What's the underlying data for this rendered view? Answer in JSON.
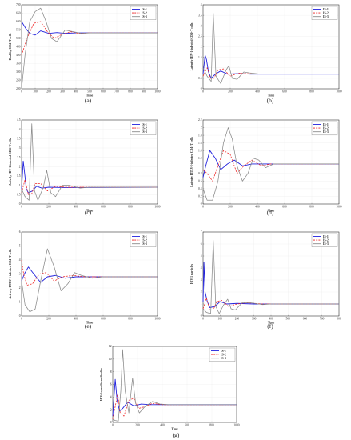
{
  "colors": {
    "IS-1": "#2222dd",
    "IS-2": "#ee2222",
    "IS-3": "#8a8a8a"
  },
  "chart_data": [
    {
      "id": "a",
      "type": "line",
      "panel_label": "(a)",
      "xlabel": "Time",
      "ylabel": "Healthy CD4+T cells",
      "xlim": [
        0,
        1000
      ],
      "ylim": [
        200,
        700
      ],
      "xticks": [
        0,
        100,
        200,
        300,
        400,
        500,
        600,
        700,
        800,
        900,
        1000
      ],
      "yticks": [
        200,
        250,
        300,
        350,
        400,
        450,
        500,
        550,
        600,
        650,
        700
      ],
      "grid": true,
      "legend": "top-right",
      "series": [
        {
          "name": "IS-1",
          "style": "solid",
          "x": [
            0,
            30,
            60,
            100,
            140,
            200,
            260,
            320,
            400,
            500,
            1000
          ],
          "y": [
            600,
            560,
            530,
            520,
            545,
            530,
            535,
            530,
            533,
            533,
            533
          ]
        },
        {
          "name": "IS-2",
          "style": "dashed",
          "x": [
            0,
            40,
            90,
            140,
            190,
            240,
            300,
            360,
            420,
            500,
            1000
          ],
          "y": [
            400,
            500,
            590,
            600,
            540,
            500,
            525,
            540,
            530,
            533,
            533
          ]
        },
        {
          "name": "IS-3",
          "style": "solid",
          "x": [
            0,
            25,
            60,
            100,
            140,
            180,
            220,
            260,
            320,
            380,
            440,
            500,
            1000
          ],
          "y": [
            200,
            400,
            600,
            660,
            680,
            600,
            500,
            480,
            550,
            540,
            530,
            533,
            533
          ]
        }
      ]
    },
    {
      "id": "b",
      "type": "line",
      "panel_label": "(b)",
      "xlabel": "Time",
      "ylabel": "Latently HIV-1-infected CD4+T cells",
      "xlim": [
        0,
        1000
      ],
      "ylim": [
        0,
        4
      ],
      "xticks": [
        0,
        200,
        400,
        600,
        800,
        1000
      ],
      "yticks": [
        0,
        0.5,
        1,
        1.5,
        2,
        2.5,
        3,
        3.5,
        4
      ],
      "grid": true,
      "legend": "top-right",
      "series": [
        {
          "name": "IS-1",
          "style": "solid",
          "x": [
            0,
            15,
            25,
            40,
            60,
            90,
            130,
            180,
            250,
            350,
            1000
          ],
          "y": [
            0.7,
            1.6,
            1.4,
            0.8,
            0.5,
            0.7,
            0.85,
            0.7,
            0.72,
            0.7,
            0.7
          ]
        },
        {
          "name": "IS-2",
          "style": "dashed",
          "x": [
            0,
            30,
            55,
            80,
            110,
            150,
            200,
            260,
            330,
            450,
            1000
          ],
          "y": [
            0.6,
            1.0,
            0.5,
            0.5,
            0.9,
            0.95,
            0.6,
            0.75,
            0.72,
            0.7,
            0.7
          ]
        },
        {
          "name": "IS-3",
          "style": "solid",
          "x": [
            0,
            30,
            60,
            75,
            95,
            130,
            170,
            190,
            215,
            250,
            300,
            350,
            420,
            500,
            1000
          ],
          "y": [
            1.0,
            0.6,
            0.35,
            3.6,
            0.6,
            0.25,
            0.9,
            1.1,
            0.5,
            0.45,
            0.8,
            0.75,
            0.7,
            0.7,
            0.7
          ]
        }
      ]
    },
    {
      "id": "c",
      "type": "line",
      "panel_label": "(c)",
      "xlabel": "Time",
      "ylabel": "Actively HIV-1-infected CD4+T cells",
      "xlim": [
        0,
        1000
      ],
      "ylim": [
        0,
        4.5
      ],
      "xticks": [
        0,
        200,
        400,
        600,
        800,
        1000
      ],
      "yticks": [
        0,
        0.5,
        1,
        1.5,
        2,
        2.5,
        3,
        3.5,
        4,
        4.5
      ],
      "grid": true,
      "legend": "top-right",
      "series": [
        {
          "name": "IS-1",
          "style": "solid",
          "x": [
            0,
            12,
            20,
            35,
            50,
            80,
            110,
            150,
            200,
            300,
            1000
          ],
          "y": [
            0.8,
            2.3,
            1.8,
            0.8,
            0.6,
            0.7,
            0.95,
            0.85,
            0.9,
            0.88,
            0.9
          ]
        },
        {
          "name": "IS-2",
          "style": "dashed",
          "x": [
            0,
            25,
            50,
            75,
            100,
            140,
            190,
            250,
            320,
            450,
            1000
          ],
          "y": [
            0.6,
            1.3,
            0.5,
            0.55,
            1.1,
            1.1,
            0.7,
            0.95,
            0.9,
            0.9,
            0.9
          ]
        },
        {
          "name": "IS-3",
          "style": "solid",
          "x": [
            0,
            25,
            55,
            75,
            95,
            120,
            160,
            185,
            215,
            250,
            300,
            350,
            430,
            500,
            1000
          ],
          "y": [
            0.8,
            0.4,
            0.2,
            4.3,
            0.7,
            0.2,
            0.9,
            1.8,
            0.6,
            0.4,
            1.0,
            1.0,
            0.85,
            0.9,
            0.9
          ]
        }
      ]
    },
    {
      "id": "d",
      "type": "line",
      "panel_label": "(d)",
      "xlabel": "Time",
      "ylabel": "Latently HTLV-I-infected CD4+T cells",
      "xlim": [
        0,
        1000
      ],
      "ylim": [
        0,
        2.2
      ],
      "xticks": [
        0,
        200,
        400,
        600,
        800,
        1000
      ],
      "yticks": [
        0,
        0.2,
        0.4,
        0.6,
        0.8,
        1,
        1.2,
        1.4,
        1.6,
        1.8,
        2,
        2.2
      ],
      "grid": true,
      "legend": "top-right",
      "series": [
        {
          "name": "IS-1",
          "style": "solid",
          "x": [
            0,
            20,
            50,
            90,
            130,
            180,
            230,
            290,
            360,
            450,
            1000
          ],
          "y": [
            0.7,
            1.0,
            1.4,
            1.2,
            0.9,
            1.05,
            1.15,
            1.0,
            1.05,
            1.05,
            1.05
          ]
        },
        {
          "name": "IS-2",
          "style": "dashed",
          "x": [
            0,
            30,
            70,
            110,
            150,
            200,
            250,
            300,
            360,
            430,
            500,
            1000
          ],
          "y": [
            0.9,
            0.8,
            0.6,
            1.0,
            1.4,
            1.3,
            0.8,
            1.0,
            1.15,
            1.0,
            1.05,
            1.05
          ]
        },
        {
          "name": "IS-3",
          "style": "solid",
          "x": [
            0,
            30,
            70,
            110,
            150,
            185,
            215,
            250,
            290,
            330,
            370,
            410,
            460,
            520,
            600,
            1000
          ],
          "y": [
            0.4,
            0.1,
            0.1,
            0.6,
            1.6,
            2.0,
            1.7,
            1.0,
            0.6,
            0.8,
            1.2,
            1.15,
            0.95,
            1.05,
            1.05,
            1.05
          ]
        }
      ]
    },
    {
      "id": "e",
      "type": "line",
      "panel_label": "(e)",
      "xlabel": "Time",
      "ylabel": "Actively HTLV-I-infected CD4+T cells",
      "xlim": [
        0,
        1000
      ],
      "ylim": [
        0,
        6
      ],
      "xticks": [
        0,
        200,
        400,
        600,
        800,
        1000
      ],
      "yticks": [
        0,
        1,
        2,
        3,
        4,
        5,
        6
      ],
      "grid": true,
      "legend": "top-right",
      "series": [
        {
          "name": "IS-1",
          "style": "solid",
          "x": [
            0,
            20,
            50,
            90,
            140,
            190,
            250,
            320,
            400,
            1000
          ],
          "y": [
            2.5,
            3.0,
            3.5,
            3.0,
            2.4,
            2.8,
            2.9,
            2.7,
            2.8,
            2.8
          ]
        },
        {
          "name": "IS-2",
          "style": "dashed",
          "x": [
            0,
            15,
            40,
            80,
            130,
            180,
            240,
            300,
            380,
            460,
            1000
          ],
          "y": [
            4.0,
            3.0,
            2.2,
            2.3,
            3.0,
            3.1,
            2.5,
            2.8,
            2.9,
            2.8,
            2.8
          ]
        },
        {
          "name": "IS-3",
          "style": "solid",
          "x": [
            0,
            25,
            60,
            100,
            140,
            190,
            240,
            290,
            340,
            390,
            440,
            520,
            600,
            1000
          ],
          "y": [
            2.5,
            0.8,
            0.3,
            0.5,
            2.5,
            4.8,
            3.5,
            1.8,
            2.3,
            3.1,
            2.9,
            2.7,
            2.8,
            2.8
          ]
        }
      ]
    },
    {
      "id": "f",
      "type": "line",
      "panel_label": "(f)",
      "xlabel": "Time",
      "ylabel": "HIV-1 particles",
      "xlim": [
        0,
        800
      ],
      "ylim": [
        0,
        7
      ],
      "xticks": [
        0,
        100,
        200,
        300,
        400,
        500,
        600,
        700,
        800
      ],
      "yticks": [
        0,
        1,
        2,
        3,
        4,
        5,
        6,
        7
      ],
      "grid": true,
      "legend": "top-right",
      "series": [
        {
          "name": "IS-1",
          "style": "solid",
          "x": [
            0,
            5,
            12,
            25,
            40,
            70,
            100,
            140,
            200,
            300,
            800
          ],
          "y": [
            1.2,
            4.5,
            2.0,
            1.2,
            0.7,
            0.8,
            1.2,
            1.0,
            1.05,
            1.0,
            1.0
          ]
        },
        {
          "name": "IS-2",
          "style": "dashed",
          "x": [
            0,
            20,
            40,
            60,
            80,
            110,
            150,
            200,
            260,
            350,
            800
          ],
          "y": [
            0.6,
            1.5,
            0.5,
            0.5,
            1.2,
            1.3,
            0.8,
            1.0,
            1.1,
            1.0,
            1.0
          ]
        },
        {
          "name": "IS-3",
          "style": "solid",
          "x": [
            0,
            20,
            45,
            60,
            75,
            95,
            120,
            145,
            165,
            190,
            230,
            280,
            350,
            400,
            800
          ],
          "y": [
            0.6,
            0.3,
            0.2,
            6.3,
            0.8,
            0.2,
            0.9,
            1.4,
            0.6,
            0.5,
            1.1,
            1.1,
            0.95,
            1.0,
            1.0
          ]
        }
      ]
    },
    {
      "id": "g",
      "type": "line",
      "panel_label": "(g)",
      "xlabel": "Time",
      "ylabel": "HIV-1-specific antibodies",
      "xlim": [
        0,
        1000
      ],
      "ylim": [
        0,
        12
      ],
      "xticks": [
        0,
        200,
        400,
        600,
        800,
        1000
      ],
      "yticks": [
        0,
        2,
        4,
        6,
        8,
        10,
        12
      ],
      "grid": true,
      "legend": "top-right",
      "series": [
        {
          "name": "IS-1",
          "style": "solid",
          "x": [
            0,
            10,
            20,
            35,
            55,
            80,
            120,
            170,
            230,
            300,
            1000
          ],
          "y": [
            1.0,
            4.0,
            6.8,
            3.5,
            1.8,
            2.2,
            3.2,
            2.6,
            2.9,
            2.8,
            2.8
          ]
        },
        {
          "name": "IS-2",
          "style": "dashed",
          "x": [
            0,
            20,
            40,
            60,
            90,
            130,
            170,
            210,
            260,
            320,
            400,
            1000
          ],
          "y": [
            0.5,
            2.5,
            4.5,
            1.5,
            1.0,
            3.5,
            3.8,
            2.2,
            2.5,
            3.0,
            2.8,
            2.8
          ]
        },
        {
          "name": "IS-3",
          "style": "solid",
          "x": [
            0,
            20,
            45,
            65,
            80,
            100,
            130,
            160,
            185,
            215,
            260,
            320,
            380,
            450,
            1000
          ],
          "y": [
            0.5,
            0.3,
            0.2,
            5.0,
            11.5,
            5.0,
            1.5,
            7.0,
            3.0,
            1.5,
            2.5,
            3.3,
            2.9,
            2.8,
            2.8
          ]
        }
      ]
    }
  ]
}
